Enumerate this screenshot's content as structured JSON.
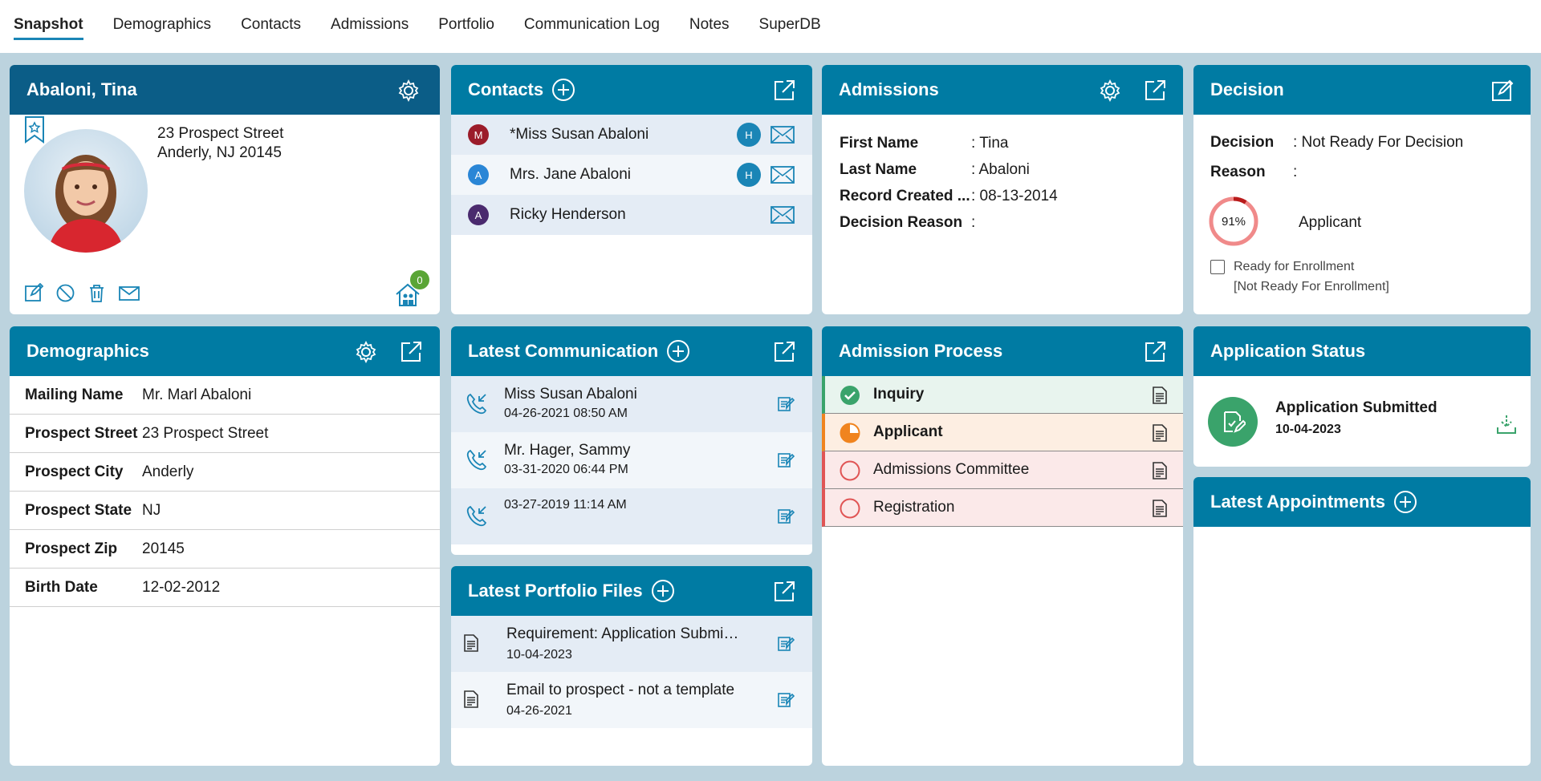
{
  "nav": {
    "tabs": [
      "Snapshot",
      "Demographics",
      "Contacts",
      "Admissions",
      "Portfolio",
      "Communication Log",
      "Notes",
      "SuperDB"
    ]
  },
  "profile": {
    "name": "Abaloni, Tina",
    "address_line1": "23 Prospect Street",
    "address_line2": "Anderly, NJ 20145",
    "household_badge": "0"
  },
  "contacts": {
    "title": "Contacts",
    "items": [
      {
        "initial": "M",
        "name": "*Miss Susan Abaloni",
        "badge": "H",
        "color": "#9b1c2a"
      },
      {
        "initial": "A",
        "name": "Mrs. Jane Abaloni",
        "badge": "H",
        "color": "#2a86d6"
      },
      {
        "initial": "A",
        "name": "Ricky Henderson",
        "badge": "",
        "color": "#4a2a6e"
      }
    ]
  },
  "admissions": {
    "title": "Admissions",
    "rows": [
      {
        "k": "First Name",
        "v": ": Tina"
      },
      {
        "k": "Last Name",
        "v": ": Abaloni"
      },
      {
        "k": "Record Created ...",
        "v": ": 08-13-2014"
      },
      {
        "k": "Decision Reason",
        "v": ":"
      }
    ]
  },
  "decision": {
    "title": "Decision",
    "decision_label": "Decision",
    "decision_value": ": Not Ready For Decision",
    "reason_label": "Reason",
    "reason_value": ":",
    "progress_text": "91%",
    "progress": 0.09,
    "stage": "Applicant",
    "ready_label": "Ready for Enrollment",
    "ready_status": "[Not Ready For Enrollment]"
  },
  "demographics": {
    "title": "Demographics",
    "rows": [
      {
        "k": "Mailing Name",
        "v": "Mr. Marl Abaloni"
      },
      {
        "k": "Prospect Street",
        "v": "23 Prospect Street"
      },
      {
        "k": "Prospect City",
        "v": "Anderly"
      },
      {
        "k": "Prospect State",
        "v": "NJ"
      },
      {
        "k": "Prospect Zip",
        "v": "20145"
      },
      {
        "k": "Birth Date",
        "v": "12-02-2012"
      }
    ]
  },
  "communication": {
    "title": "Latest Communication",
    "items": [
      {
        "name": "Miss Susan Abaloni",
        "date": "04-26-2021 08:50 AM"
      },
      {
        "name": "Mr. Hager, Sammy",
        "date": "03-31-2020 06:44 PM"
      },
      {
        "name": "",
        "date": "03-27-2019 11:14 AM"
      }
    ]
  },
  "portfolio": {
    "title": "Latest Portfolio Files",
    "items": [
      {
        "name": "Requirement: Application Submi…",
        "date": "10-04-2023"
      },
      {
        "name": "Email to prospect - not a template",
        "date": "04-26-2021"
      }
    ]
  },
  "process": {
    "title": "Admission Process",
    "steps": [
      {
        "label": "Inquiry",
        "state": "done",
        "bg": "#e8f4ee",
        "bar": "#3aa36b"
      },
      {
        "label": "Applicant",
        "state": "partial",
        "bg": "#fdeee2",
        "bar": "#f0841f"
      },
      {
        "label": "Admissions Committee",
        "state": "todo",
        "bg": "#fbe9e9",
        "bar": "#e05555"
      },
      {
        "label": "Registration",
        "state": "todo",
        "bg": "#fbe9e9",
        "bar": "#e05555"
      }
    ]
  },
  "app_status": {
    "title": "Application Status",
    "status": "Application Submitted",
    "date": "10-04-2023"
  },
  "appointments": {
    "title": "Latest Appointments"
  },
  "colors": {
    "header": "#007ba3",
    "header_dark": "#0b5d87",
    "accent": "#1a85b6",
    "bg": "#bcd3de"
  }
}
